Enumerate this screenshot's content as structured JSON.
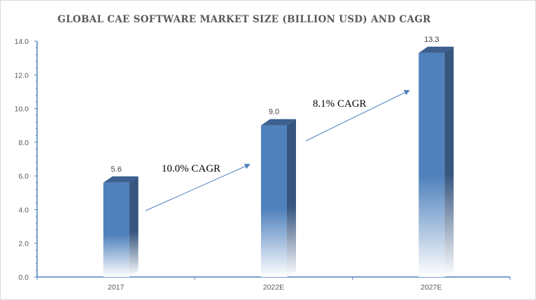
{
  "chart_data": {
    "type": "bar",
    "title": "GLOBAL CAE SOFTWARE MARKET SIZE (BILLION USD) AND CAGR",
    "categories": [
      "2017",
      "2022E",
      "2027E"
    ],
    "values": [
      5.6,
      9.0,
      13.3
    ],
    "data_labels": [
      "5.6",
      "9.0",
      "13.3"
    ],
    "ylim": [
      0,
      14
    ],
    "yticks": [
      "0.0",
      "2.0",
      "4.0",
      "6.0",
      "8.0",
      "10.0",
      "12.0",
      "14.0"
    ],
    "xlabel": "",
    "ylabel": "",
    "grid": false,
    "style": "3d-column with gradient fade",
    "bar_color": "#4f81bd",
    "bar_side_color": "#36557f",
    "bar_top_color": "#3c6090",
    "axis_color": "#4f81bd",
    "annotations": [
      {
        "text": "10.0% CAGR",
        "from": "2017",
        "to": "2022E"
      },
      {
        "text": "8.1% CAGR",
        "from": "2022E",
        "to": "2027E"
      }
    ]
  }
}
